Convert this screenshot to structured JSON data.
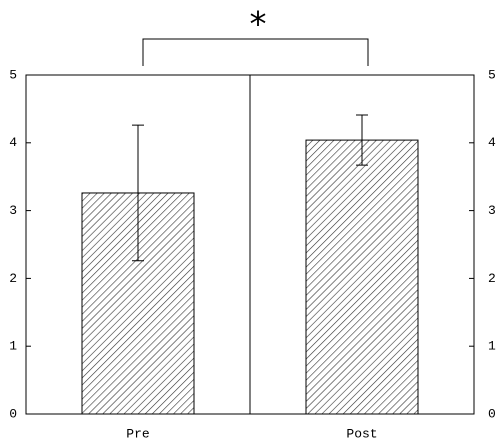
{
  "chart_data": {
    "type": "bar",
    "annotation": "*",
    "categories": [
      "Pre",
      "Post"
    ],
    "values": [
      3.26,
      4.04
    ],
    "errors": [
      1.0,
      0.37
    ],
    "color": "#ffffff",
    "ylim": [
      0,
      5
    ],
    "yticks": [
      0,
      1,
      2,
      3,
      4,
      5
    ],
    "y2lim": [
      0,
      5
    ],
    "y2ticks": [
      0,
      1,
      2,
      3,
      4,
      5
    ]
  }
}
